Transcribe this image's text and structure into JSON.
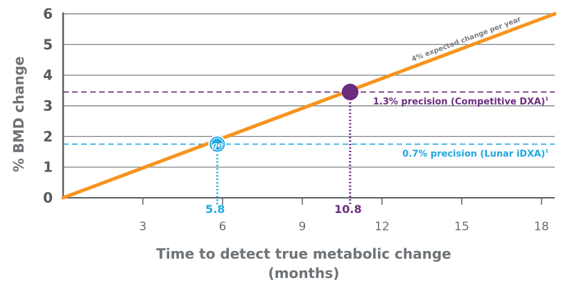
{
  "chart_data": {
    "type": "line",
    "xlabel_line1": "Time to detect true metabolic change",
    "xlabel_line2": "(months)",
    "ylabel": "% BMD change",
    "xlim": [
      0,
      18.5
    ],
    "ylim": [
      0,
      6
    ],
    "x_ticks": [
      "3",
      "6",
      "9",
      "12",
      "15",
      "18"
    ],
    "x_tick_values": [
      3,
      6,
      9,
      12,
      15,
      18
    ],
    "y_ticks": [
      "0",
      "1",
      "2",
      "3",
      "4",
      "5",
      "6"
    ],
    "y_tick_values": [
      0,
      1,
      2,
      3,
      4,
      5,
      6
    ],
    "grid": "horizontal",
    "trend_line": {
      "label": "4% expected change per year",
      "x": [
        0,
        18.5
      ],
      "y": [
        0,
        6
      ],
      "color": "#f7941d"
    },
    "reference_lines": [
      {
        "label": "1.3% precision (Competitive DXA)",
        "footnote": "1",
        "y": 3.45,
        "color": "#6c2c7e",
        "intersection_x": 10.8,
        "x_label": "10.8",
        "marker": "filled-circle"
      },
      {
        "label": "0.7% precision (Lunar iDXA)",
        "footnote": "1",
        "y": 1.75,
        "color": "#1fa8e0",
        "intersection_x": 5.8,
        "x_label": "5.8",
        "marker": "ge-logo"
      }
    ],
    "colors": {
      "axis": "#5a5f63",
      "grid": "#6e7377",
      "tick_labels": "#555a5e"
    },
    "icons": [
      "ge-logo-icon"
    ]
  }
}
